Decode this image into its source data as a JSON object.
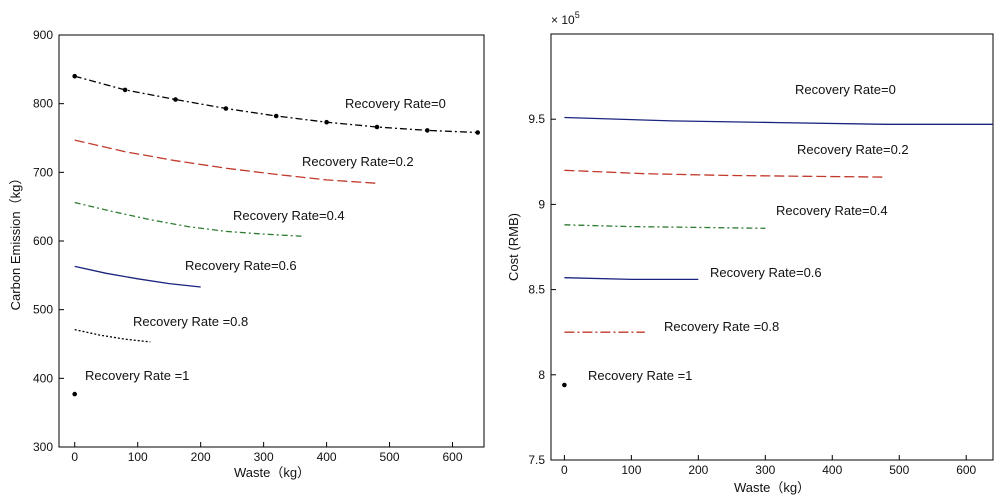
{
  "chart_data": [
    {
      "type": "line",
      "xlabel": "Waste（kg）",
      "ylabel": "Carbon Emission（kg）",
      "xlim": [
        -25,
        650
      ],
      "ylim": [
        300,
        900
      ],
      "xticks": [
        0,
        100,
        200,
        300,
        400,
        500,
        600
      ],
      "yticks": [
        300,
        400,
        500,
        600,
        700,
        800,
        900
      ],
      "grid": false,
      "series": [
        {
          "name": "Recovery Rate=0",
          "label": "Recovery Rate=0",
          "color": "#000000",
          "dash": "7,3,2,3",
          "markers": true,
          "x": [
            0,
            80,
            160,
            240,
            320,
            400,
            480,
            560,
            640
          ],
          "y": [
            840,
            820,
            806,
            793,
            782,
            773,
            766,
            761,
            758
          ]
        },
        {
          "name": "Recovery Rate=0.2",
          "label": "Recovery Rate=0.2",
          "color": "#c0392b",
          "dash": "10,4",
          "x": [
            0,
            80,
            160,
            240,
            320,
            400,
            480
          ],
          "y": [
            747,
            730,
            717,
            706,
            697,
            689,
            684
          ]
        },
        {
          "name": "Recovery Rate=0.4",
          "label": "Recovery Rate=0.4",
          "color": "#2e7d32",
          "dash": "6,3,2,3",
          "x": [
            0,
            60,
            120,
            180,
            240,
            300,
            360
          ],
          "y": [
            656,
            643,
            631,
            621,
            614,
            610,
            607
          ]
        },
        {
          "name": "Recovery Rate=0.6",
          "label": "Recovery Rate=0.6",
          "color": "#1a237e",
          "dash": "",
          "x": [
            0,
            50,
            100,
            150,
            200
          ],
          "y": [
            563,
            553,
            545,
            538,
            533
          ]
        },
        {
          "name": "Recovery Rate=0.8",
          "label": "Recovery Rate =0.8",
          "color": "#000000",
          "dash": "2,2",
          "x": [
            0,
            40,
            80,
            120
          ],
          "y": [
            471,
            463,
            457,
            453
          ]
        },
        {
          "name": "Recovery Rate =1",
          "label": "Recovery Rate =1",
          "color": "#000000",
          "dash": "",
          "markers": true,
          "x": [
            0
          ],
          "y": [
            377
          ]
        }
      ]
    },
    {
      "type": "line",
      "xlabel": "Waste（kg）",
      "ylabel": "Cost (RMB)",
      "exponent_label": "× 10",
      "exponent_power": "5",
      "xlim": [
        -20,
        640
      ],
      "ylim": [
        7.5,
        10.0
      ],
      "xticks": [
        0,
        100,
        200,
        300,
        400,
        500,
        600
      ],
      "yticks": [
        7.5,
        8,
        8.5,
        9,
        9.5
      ],
      "grid": false,
      "series": [
        {
          "name": "Recovery Rate=0",
          "label": "Recovery Rate=0",
          "color": "#1a237e",
          "dash": "",
          "x": [
            0,
            160,
            320,
            480,
            640
          ],
          "y": [
            9.51,
            9.49,
            9.48,
            9.47,
            9.47
          ]
        },
        {
          "name": "Recovery Rate=0.2",
          "label": "Recovery Rate=0.2",
          "color": "#c0392b",
          "dash": "10,4",
          "x": [
            0,
            120,
            240,
            360,
            480
          ],
          "y": [
            9.2,
            9.18,
            9.17,
            9.165,
            9.16
          ]
        },
        {
          "name": "Recovery Rate=0.4",
          "label": "Recovery Rate=0.4",
          "color": "#2e7d32",
          "dash": "6,3,2,3",
          "x": [
            0,
            100,
            200,
            300
          ],
          "y": [
            8.88,
            8.87,
            8.865,
            8.86
          ]
        },
        {
          "name": "Recovery Rate=0.6",
          "label": "Recovery Rate=0.6",
          "color": "#1a237e",
          "dash": "",
          "x": [
            0,
            100,
            200
          ],
          "y": [
            8.57,
            8.56,
            8.56
          ]
        },
        {
          "name": "Recovery Rate=0.8",
          "label": "Recovery Rate =0.8",
          "color": "#c0392b",
          "dash": "10,3,2,3",
          "x": [
            0,
            60,
            120
          ],
          "y": [
            8.25,
            8.25,
            8.25
          ]
        },
        {
          "name": "Recovery Rate =1",
          "label": "Recovery Rate =1",
          "color": "#000000",
          "dash": "",
          "markers": true,
          "x": [
            0
          ],
          "y": [
            7.94
          ]
        }
      ]
    }
  ]
}
